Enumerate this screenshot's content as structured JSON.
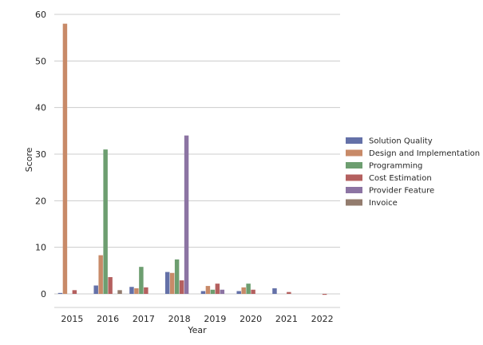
{
  "chart_data": {
    "type": "bar",
    "title": "",
    "xlabel": "Year",
    "ylabel": "Score",
    "categories": [
      "2015",
      "2016",
      "2017",
      "2018",
      "2019",
      "2020",
      "2021",
      "2022"
    ],
    "ylim": [
      -3.0,
      60
    ],
    "yticks": [
      0,
      10,
      20,
      30,
      40,
      50,
      60
    ],
    "grid": "horizontal",
    "legend_position": "right",
    "series": [
      {
        "name": "Solution Quality",
        "color": "#6471a8",
        "values": [
          0.2,
          1.8,
          1.5,
          4.7,
          0.6,
          0.6,
          1.2,
          0
        ]
      },
      {
        "name": "Design and Implementation",
        "color": "#c88a68",
        "values": [
          58,
          8.3,
          1.2,
          4.5,
          1.7,
          1.4,
          0,
          0
        ]
      },
      {
        "name": "Programming",
        "color": "#6d9e70",
        "values": [
          0,
          31,
          5.8,
          7.4,
          0.9,
          2.2,
          0,
          0
        ]
      },
      {
        "name": "Cost Estimation",
        "color": "#b4605f",
        "values": [
          0.8,
          3.6,
          1.4,
          2.9,
          2.2,
          0.9,
          0.4,
          -0.2
        ]
      },
      {
        "name": "Provider Feature",
        "color": "#8c74a3",
        "values": [
          0,
          0,
          0,
          34,
          0.9,
          0,
          0,
          0
        ]
      },
      {
        "name": "Invoice",
        "color": "#937c6e",
        "values": [
          0,
          0.8,
          0,
          0,
          0,
          0,
          0,
          0
        ]
      }
    ]
  }
}
